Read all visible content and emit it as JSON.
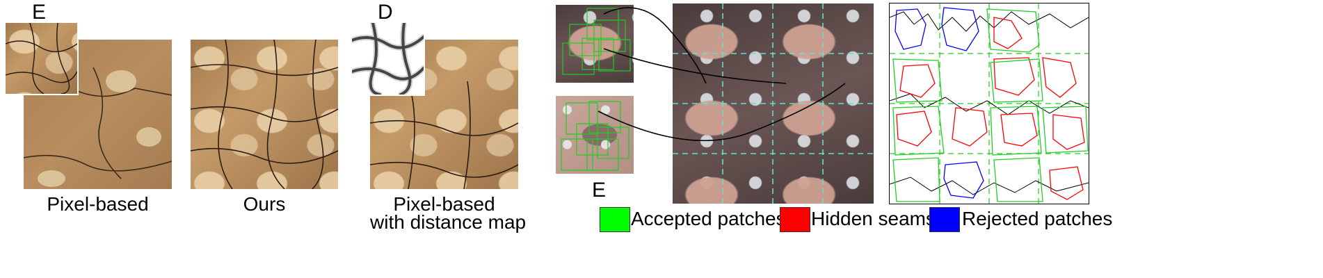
{
  "panel_letters": {
    "e_left": "E",
    "d": "D",
    "e_right": "E"
  },
  "captions": {
    "pixel_based": "Pixel-based",
    "ours": "Ours",
    "pixel_based_distance_line1": "Pixel-based",
    "pixel_based_distance_line2": "with distance map"
  },
  "legend": {
    "accepted": {
      "label": "Accepted patches",
      "color": "#00ff00"
    },
    "hidden": {
      "label": "Hidden seams",
      "color": "#ff0000"
    },
    "rejected": {
      "label": "Rejected patches",
      "color": "#0000ff"
    }
  },
  "colors": {
    "grid_dash": "#66e0c8",
    "patch_green": "#22cc22"
  }
}
